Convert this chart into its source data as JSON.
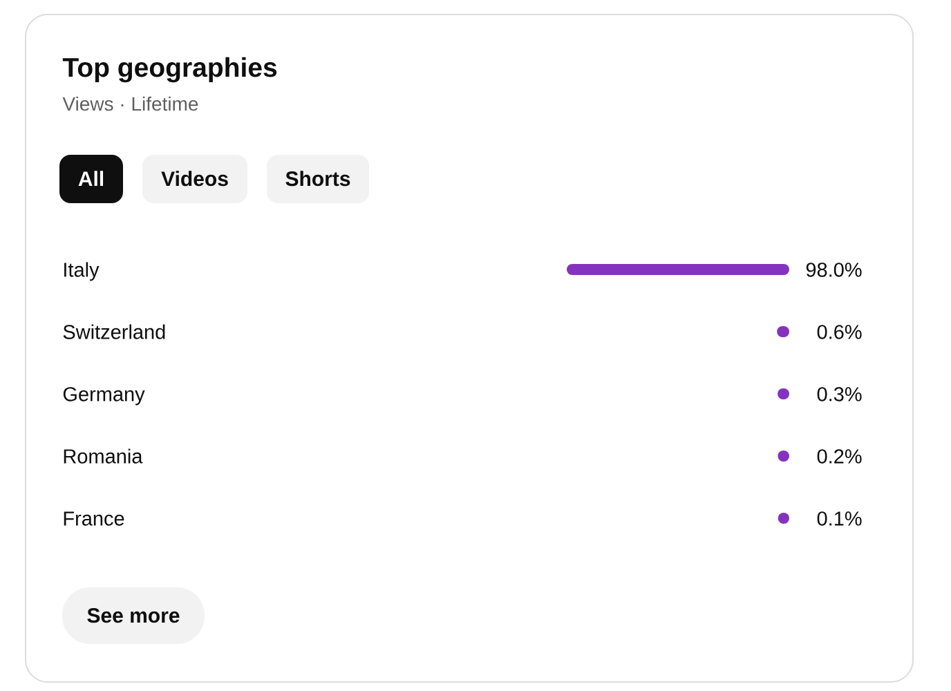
{
  "chart_data": {
    "type": "bar",
    "orientation": "horizontal",
    "title": "Top geographies",
    "subtitle": "Views · Lifetime",
    "categories": [
      "Italy",
      "Switzerland",
      "Germany",
      "Romania",
      "France"
    ],
    "values": [
      98.0,
      0.6,
      0.3,
      0.2,
      0.1
    ],
    "value_labels": [
      "98.0%",
      "0.6%",
      "0.3%",
      "0.2%",
      "0.1%"
    ],
    "color": "#8433bf",
    "annotations": [
      "All",
      "Videos",
      "Shorts",
      "See more"
    ]
  }
}
